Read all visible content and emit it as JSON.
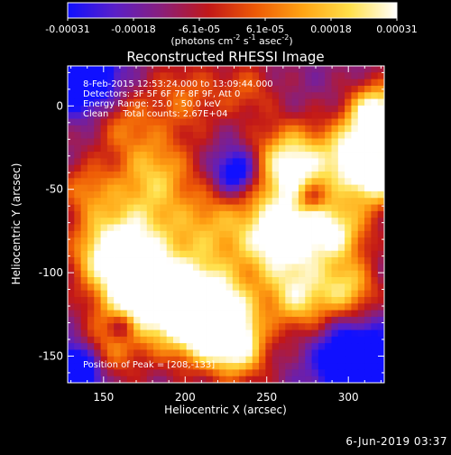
{
  "chart_data": {
    "type": "heatmap",
    "title": "Reconstructed RHESSI Image",
    "xlabel": "Heliocentric X (arcsec)",
    "ylabel": "Heliocentric Y (arcsec)",
    "xlim": [
      128,
      322
    ],
    "ylim": [
      -166,
      24
    ],
    "xticks": [
      150,
      200,
      250,
      300
    ],
    "yticks": [
      0,
      -50,
      -100,
      -150
    ],
    "colorbar": {
      "ticks": [
        "-0.00031",
        "-0.00018",
        "-6.1e-05",
        "6.1e-05",
        "0.00018",
        "0.00031"
      ],
      "unit_main": "(photons cm",
      "unit_exp1": "-2",
      "unit_mid": " s",
      "unit_exp2": "-1",
      "unit_end": " asec",
      "unit_exp3": "-2",
      "unit_close": ")",
      "min": -0.00031,
      "max": 0.00031,
      "colors": [
        "#1010ff",
        "#5a1fc8",
        "#8a1f7a",
        "#c21818",
        "#ee5a06",
        "#ffa414",
        "#ffe04a",
        "#ffffff"
      ]
    },
    "annotations": {
      "line1": "8-Feb-2015 12:53:24.000 to 13:09:44.000",
      "line2": "Detectors: 3F 5F 6F 7F 8F 9F, Att 0",
      "line3": "Energy Range: 25.0 - 50.0 keV",
      "line4": "Clean     Total counts: 2.67E+04",
      "peak": "Position of Peak = [208,-133]"
    },
    "blobs": [
      {
        "x": 205,
        "y": -120,
        "amp": 1.0,
        "s": 20
      },
      {
        "x": 223,
        "y": -133,
        "amp": 0.8,
        "s": 14
      },
      {
        "x": 170,
        "y": -115,
        "amp": 0.65,
        "s": 16
      },
      {
        "x": 168,
        "y": -80,
        "amp": 0.6,
        "s": 20
      },
      {
        "x": 150,
        "y": -90,
        "amp": 0.4,
        "s": 14
      },
      {
        "x": 182,
        "y": -40,
        "amp": 0.45,
        "s": 16
      },
      {
        "x": 215,
        "y": -70,
        "amp": 0.35,
        "s": 16
      },
      {
        "x": 200,
        "y": 5,
        "amp": 0.3,
        "s": 16
      },
      {
        "x": 162,
        "y": -10,
        "amp": 0.3,
        "s": 14
      },
      {
        "x": 258,
        "y": -78,
        "amp": 0.85,
        "s": 18
      },
      {
        "x": 265,
        "y": -35,
        "amp": 0.75,
        "s": 16
      },
      {
        "x": 270,
        "y": -115,
        "amp": 0.55,
        "s": 14
      },
      {
        "x": 292,
        "y": -75,
        "amp": 0.6,
        "s": 14
      },
      {
        "x": 305,
        "y": -30,
        "amp": 0.75,
        "s": 14
      },
      {
        "x": 318,
        "y": -5,
        "amp": 0.85,
        "s": 12
      },
      {
        "x": 318,
        "y": -45,
        "amp": 0.55,
        "s": 12
      },
      {
        "x": 300,
        "y": -110,
        "amp": 0.5,
        "s": 12
      },
      {
        "x": 235,
        "y": -150,
        "amp": 0.35,
        "s": 12
      },
      {
        "x": 150,
        "y": -150,
        "amp": 0.35,
        "s": 14
      },
      {
        "x": 140,
        "y": -50,
        "amp": 0.3,
        "s": 12
      },
      {
        "x": 238,
        "y": 10,
        "amp": 0.25,
        "s": 12
      }
    ],
    "holes": [
      {
        "x": 133,
        "y": -160,
        "amp": 0.8,
        "s": 12
      },
      {
        "x": 140,
        "y": 15,
        "amp": 0.6,
        "s": 14
      },
      {
        "x": 305,
        "y": -155,
        "amp": 0.7,
        "s": 16
      },
      {
        "x": 232,
        "y": -40,
        "amp": 0.5,
        "s": 10
      },
      {
        "x": 162,
        "y": -132,
        "amp": 0.35,
        "s": 6
      },
      {
        "x": 277,
        "y": -55,
        "amp": 0.35,
        "s": 6
      }
    ]
  },
  "footer": {
    "timestamp": "6-Jun-2019 03:37"
  }
}
